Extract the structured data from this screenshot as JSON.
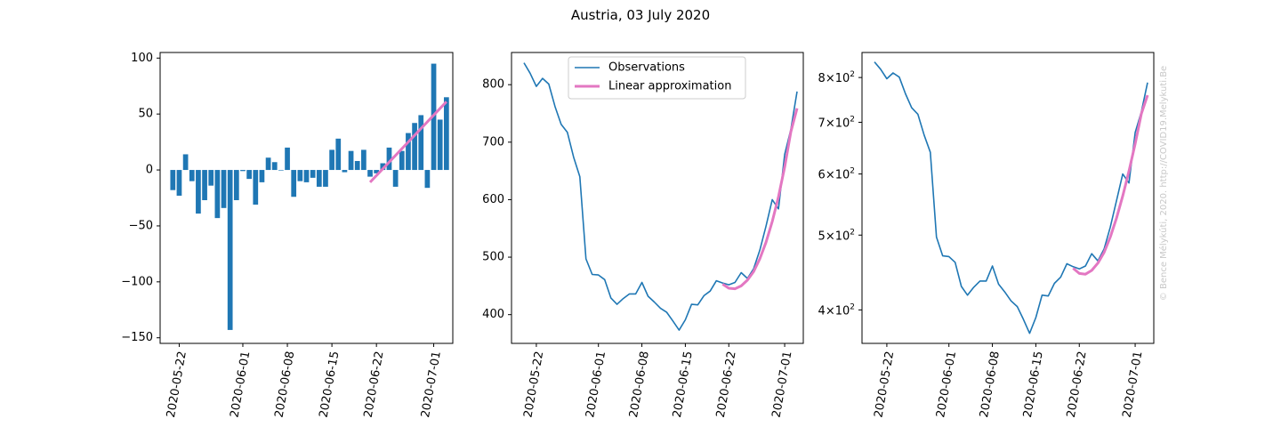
{
  "figure": {
    "title": "Austria, 03 July 2020",
    "credit": "© Bence Mélykúti, 2020. http://COVID19.Melykuti.Be"
  },
  "colors": {
    "observations": "#1f77b4",
    "approximation": "#e377c2",
    "bars": "#1f77b4",
    "credit": "#c8c8c8"
  },
  "chart_data": [
    {
      "type": "bar",
      "x_dates": [
        "2020-05-21",
        "2020-05-22",
        "2020-05-23",
        "2020-05-24",
        "2020-05-25",
        "2020-05-26",
        "2020-05-27",
        "2020-05-28",
        "2020-05-29",
        "2020-05-30",
        "2020-05-31",
        "2020-06-01",
        "2020-06-02",
        "2020-06-03",
        "2020-06-04",
        "2020-06-05",
        "2020-06-06",
        "2020-06-07",
        "2020-06-08",
        "2020-06-09",
        "2020-06-10",
        "2020-06-11",
        "2020-06-12",
        "2020-06-13",
        "2020-06-14",
        "2020-06-15",
        "2020-06-16",
        "2020-06-17",
        "2020-06-18",
        "2020-06-19",
        "2020-06-20",
        "2020-06-21",
        "2020-06-22",
        "2020-06-23",
        "2020-06-24",
        "2020-06-25",
        "2020-06-26",
        "2020-06-27",
        "2020-06-28",
        "2020-06-29",
        "2020-06-30",
        "2020-07-01",
        "2020-07-02",
        "2020-07-03"
      ],
      "values": [
        -18,
        -23,
        14,
        -10,
        -39,
        -27,
        -14,
        -43,
        -34,
        -143,
        -27,
        -1,
        -8,
        -31,
        -11,
        11,
        7,
        0,
        20,
        -24,
        -10,
        -11,
        -7,
        -15,
        -15,
        18,
        28,
        -2,
        17,
        8,
        18,
        -6,
        -3,
        6,
        20,
        -15,
        17,
        33,
        42,
        49,
        -16,
        95,
        45,
        65
      ],
      "approximation": {
        "x": [
          "2020-06-21",
          "2020-07-03"
        ],
        "y": [
          -11,
          61
        ]
      },
      "xticks": [
        "2020-05-22",
        "2020-06-01",
        "2020-06-08",
        "2020-06-15",
        "2020-06-22",
        "2020-07-01"
      ],
      "yticks": [
        "100",
        "50",
        "0",
        "−50",
        "−100",
        "−150"
      ],
      "ylim": [
        -155,
        105
      ],
      "xlim": [
        "2020-05-19",
        "2020-07-04"
      ]
    },
    {
      "type": "line",
      "x_dates": [
        "2020-05-20",
        "2020-05-21",
        "2020-05-22",
        "2020-05-23",
        "2020-05-24",
        "2020-05-25",
        "2020-05-26",
        "2020-05-27",
        "2020-05-28",
        "2020-05-29",
        "2020-05-30",
        "2020-05-31",
        "2020-06-01",
        "2020-06-02",
        "2020-06-03",
        "2020-06-04",
        "2020-06-05",
        "2020-06-06",
        "2020-06-07",
        "2020-06-08",
        "2020-06-09",
        "2020-06-10",
        "2020-06-11",
        "2020-06-12",
        "2020-06-13",
        "2020-06-14",
        "2020-06-15",
        "2020-06-16",
        "2020-06-17",
        "2020-06-18",
        "2020-06-19",
        "2020-06-20",
        "2020-06-21",
        "2020-06-22",
        "2020-06-23",
        "2020-06-24",
        "2020-06-25",
        "2020-06-26",
        "2020-06-27",
        "2020-06-28",
        "2020-06-29",
        "2020-06-30",
        "2020-07-01",
        "2020-07-02",
        "2020-07-03"
      ],
      "series": [
        {
          "name": "Observations",
          "values": [
            838,
            820,
            797,
            811,
            801,
            762,
            731,
            717,
            674,
            640,
            497,
            470,
            469,
            461,
            429,
            418,
            428,
            436,
            436,
            456,
            432,
            422,
            411,
            404,
            389,
            373,
            391,
            418,
            417,
            433,
            441,
            459,
            455,
            452,
            456,
            473,
            463,
            480,
            512,
            554,
            600,
            584,
            679,
            722,
            788
          ]
        },
        {
          "name": "Linear approximation",
          "x": [
            "2020-06-21",
            "2020-06-22",
            "2020-06-23",
            "2020-06-24",
            "2020-06-25",
            "2020-06-26",
            "2020-06-27",
            "2020-06-28",
            "2020-06-29",
            "2020-06-30",
            "2020-07-01",
            "2020-07-02",
            "2020-07-03"
          ],
          "values": [
            453,
            446,
            445,
            450,
            460,
            475,
            497,
            526,
            562,
            605,
            657,
            718,
            759
          ]
        }
      ],
      "legend": [
        "Observations",
        "Linear approximation"
      ],
      "legend_position": "top-center",
      "xticks": [
        "2020-05-22",
        "2020-06-01",
        "2020-06-08",
        "2020-06-15",
        "2020-06-22",
        "2020-07-01"
      ],
      "yticks": [
        "800",
        "700",
        "600",
        "500",
        "400"
      ],
      "ylim": [
        350,
        856
      ],
      "xlim": [
        "2020-05-18",
        "2020-07-04"
      ]
    },
    {
      "type": "line",
      "yscale": "log",
      "x_dates": [
        "2020-05-20",
        "2020-05-21",
        "2020-05-22",
        "2020-05-23",
        "2020-05-24",
        "2020-05-25",
        "2020-05-26",
        "2020-05-27",
        "2020-05-28",
        "2020-05-29",
        "2020-05-30",
        "2020-05-31",
        "2020-06-01",
        "2020-06-02",
        "2020-06-03",
        "2020-06-04",
        "2020-06-05",
        "2020-06-06",
        "2020-06-07",
        "2020-06-08",
        "2020-06-09",
        "2020-06-10",
        "2020-06-11",
        "2020-06-12",
        "2020-06-13",
        "2020-06-14",
        "2020-06-15",
        "2020-06-16",
        "2020-06-17",
        "2020-06-18",
        "2020-06-19",
        "2020-06-20",
        "2020-06-21",
        "2020-06-22",
        "2020-06-23",
        "2020-06-24",
        "2020-06-25",
        "2020-06-26",
        "2020-06-27",
        "2020-06-28",
        "2020-06-29",
        "2020-06-30",
        "2020-07-01",
        "2020-07-02",
        "2020-07-03"
      ],
      "series": [
        {
          "name": "Observations",
          "values": [
            838,
            820,
            797,
            811,
            801,
            762,
            731,
            717,
            674,
            640,
            497,
            470,
            469,
            461,
            429,
            418,
            428,
            436,
            436,
            456,
            432,
            422,
            411,
            404,
            389,
            373,
            391,
            418,
            417,
            433,
            441,
            459,
            455,
            452,
            456,
            473,
            463,
            480,
            512,
            554,
            600,
            584,
            679,
            722,
            788
          ]
        },
        {
          "name": "Linear approximation",
          "x": [
            "2020-06-21",
            "2020-06-22",
            "2020-06-23",
            "2020-06-24",
            "2020-06-25",
            "2020-06-26",
            "2020-06-27",
            "2020-06-28",
            "2020-06-29",
            "2020-06-30",
            "2020-07-01",
            "2020-07-02",
            "2020-07-03"
          ],
          "values": [
            453,
            446,
            445,
            450,
            460,
            475,
            497,
            526,
            562,
            605,
            657,
            718,
            759
          ]
        }
      ],
      "xticks": [
        "2020-05-22",
        "2020-06-01",
        "2020-06-08",
        "2020-06-15",
        "2020-06-22",
        "2020-07-01"
      ],
      "ytick_values": [
        800,
        700,
        600,
        500,
        400
      ],
      "ytick_base": "10",
      "ytick_exp": "2",
      "ytick_mantissas": [
        "8",
        "7",
        "6",
        "5",
        "4"
      ],
      "ylim": [
        362,
        862
      ],
      "xlim": [
        "2020-05-18",
        "2020-07-04"
      ]
    }
  ]
}
